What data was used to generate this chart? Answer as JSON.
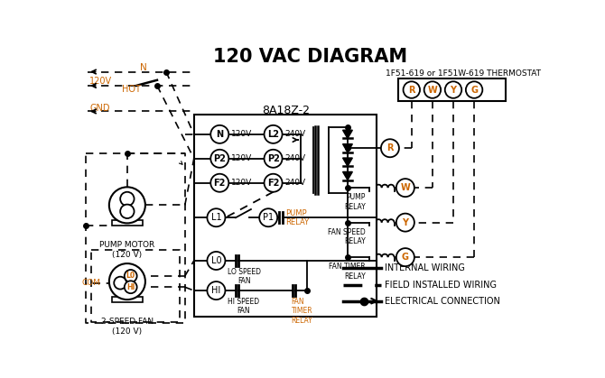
{
  "title": "120 VAC DIAGRAM",
  "title_fontsize": 15,
  "bg_color": "#ffffff",
  "black": "#000000",
  "orange": "#cc6600",
  "thermostat_label": "1F51-619 or 1F51W-619 THERMOSTAT",
  "control_box_label": "8A18Z-2",
  "thermostat_terminals": [
    "R",
    "W",
    "Y",
    "G"
  ],
  "left_terminals": [
    "N",
    "P2",
    "F2"
  ],
  "right_terminals": [
    "L2",
    "P2",
    "F2"
  ],
  "left_voltages": [
    "120V",
    "120V",
    "120V"
  ],
  "right_voltages": [
    "240V",
    "240V",
    "240V"
  ],
  "relay_right_labels": [
    "PUMP\nRELAY",
    "FAN SPEED\nRELAY",
    "FAN TIMER\nRELAY"
  ],
  "relay_right_terms": [
    "W",
    "Y",
    "G"
  ],
  "pump_motor_label": "PUMP MOTOR\n(120 V)",
  "fan_label": "2-SPEED FAN\n(120 V)",
  "legend_labels": [
    "INTERNAL WIRING",
    "FIELD INSTALLED WIRING",
    "ELECTRICAL CONNECTION"
  ],
  "input_n_label": "N",
  "input_120v_label": "120V",
  "input_hot_label": "HOT",
  "input_gnd_label": "GND",
  "l1_label": "L1",
  "p1_label": "P1",
  "lo_label": "L0",
  "hi_label": "HI",
  "com_label": "COM",
  "lo_speed_fan_label": "LO SPEED\nFAN",
  "hi_speed_fan_label": "HI SPEED\nFAN",
  "fan_timer_relay_label": "FAN\nTIMER\nRELAY",
  "pump_relay_label": "PUMP\nRELAY",
  "r_label": "R"
}
